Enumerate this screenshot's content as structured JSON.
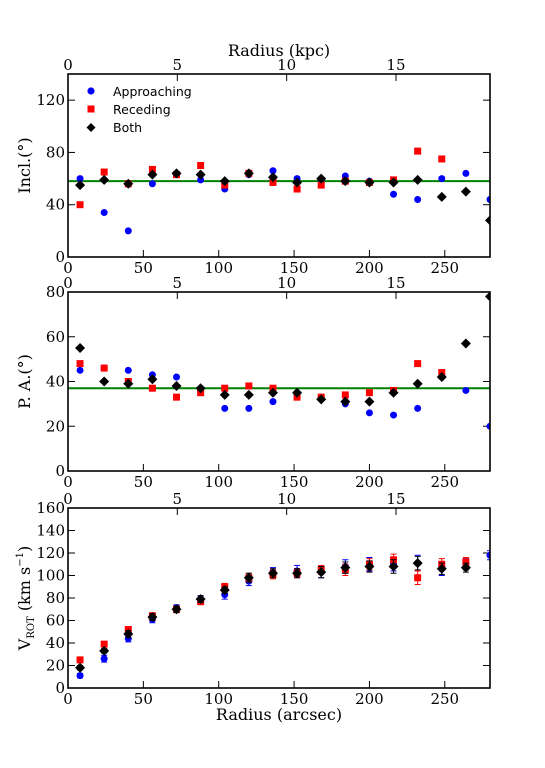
{
  "figure": {
    "top_axis_label": "Radius (kpc)",
    "bottom_axis_label": "Radius (arcsec)"
  },
  "legend": {
    "entries": [
      {
        "label": "Approaching",
        "marker": "circle",
        "color": "#0000ff"
      },
      {
        "label": "Receding",
        "marker": "square",
        "color": "#ff0000"
      },
      {
        "label": "Both",
        "marker": "diamond",
        "color": "#000000"
      }
    ]
  },
  "colors": {
    "approaching": "#0000ff",
    "receding": "#ff0000",
    "both": "#000000",
    "model_line": "#008000"
  },
  "chart_data": [
    {
      "type": "scatter",
      "panel": "inclination",
      "ylabel": "Incl.(°)",
      "xlim": [
        0,
        280
      ],
      "ylim": [
        0,
        140
      ],
      "xticks": [
        0,
        50,
        100,
        150,
        200,
        250
      ],
      "yticks": [
        0,
        40,
        80,
        120
      ],
      "top_xlim_kpc": [
        0,
        19.3
      ],
      "top_xticks_kpc": [
        0,
        5,
        10,
        15
      ],
      "hline": 58,
      "legend_position": "upper-left",
      "series": [
        {
          "name": "Approaching",
          "marker": "circle",
          "x": [
            8,
            24,
            40,
            56,
            72,
            88,
            104,
            120,
            136,
            152,
            168,
            184,
            200,
            216,
            232,
            248,
            264,
            280
          ],
          "y": [
            60,
            34,
            20,
            56,
            63,
            59,
            52,
            63,
            66,
            60,
            59,
            62,
            58,
            48,
            44,
            60,
            64,
            44
          ]
        },
        {
          "name": "Receding",
          "marker": "square",
          "x": [
            8,
            24,
            40,
            56,
            72,
            88,
            104,
            120,
            136,
            152,
            168,
            184,
            200,
            216,
            232,
            248
          ],
          "y": [
            40,
            65,
            56,
            67,
            63,
            70,
            55,
            64,
            57,
            52,
            55,
            58,
            57,
            59,
            81,
            75
          ]
        },
        {
          "name": "Both",
          "marker": "diamond",
          "x": [
            8,
            24,
            40,
            56,
            72,
            88,
            104,
            120,
            136,
            152,
            168,
            184,
            200,
            216,
            232,
            248,
            264,
            280
          ],
          "y": [
            55,
            59,
            56,
            63,
            64,
            63,
            58,
            64,
            61,
            57,
            60,
            58,
            57,
            57,
            59,
            46,
            50,
            28
          ]
        }
      ]
    },
    {
      "type": "scatter",
      "panel": "position_angle",
      "ylabel": "P. A.(°)",
      "xlim": [
        0,
        280
      ],
      "ylim": [
        0,
        80
      ],
      "xticks": [
        0,
        50,
        100,
        150,
        200,
        250
      ],
      "yticks": [
        0,
        20,
        40,
        60,
        80
      ],
      "top_xlim_kpc": [
        0,
        19.3
      ],
      "top_xticks_kpc": [
        0,
        5,
        10,
        15
      ],
      "hline": 37,
      "series": [
        {
          "name": "Approaching",
          "marker": "circle",
          "x": [
            8,
            24,
            40,
            56,
            72,
            88,
            104,
            120,
            136,
            152,
            168,
            184,
            200,
            216,
            232,
            248,
            264,
            280
          ],
          "y": [
            45,
            46,
            45,
            43,
            42,
            36,
            28,
            28,
            31,
            34,
            33,
            30,
            26,
            25,
            28,
            42,
            36,
            20
          ]
        },
        {
          "name": "Receding",
          "marker": "square",
          "x": [
            8,
            24,
            40,
            56,
            72,
            88,
            104,
            120,
            136,
            152,
            168,
            184,
            200,
            216,
            232,
            248
          ],
          "y": [
            48,
            46,
            40,
            37,
            33,
            35,
            37,
            38,
            37,
            33,
            33,
            34,
            35,
            36,
            48,
            44
          ]
        },
        {
          "name": "Both",
          "marker": "diamond",
          "x": [
            8,
            24,
            40,
            56,
            72,
            88,
            104,
            120,
            136,
            152,
            168,
            184,
            200,
            216,
            232,
            248,
            264,
            280
          ],
          "y": [
            55,
            40,
            39,
            41,
            38,
            37,
            34,
            34,
            35,
            35,
            32,
            31,
            31,
            35,
            39,
            42,
            57,
            78
          ]
        }
      ]
    },
    {
      "type": "scatter",
      "panel": "rotation_velocity",
      "ylabel_main": "V",
      "ylabel_sub": "ROT",
      "ylabel_units": " (km s",
      "ylabel_sup": "−1",
      "ylabel_close": ")",
      "xlim": [
        0,
        280
      ],
      "ylim": [
        0,
        160
      ],
      "xticks": [
        0,
        50,
        100,
        150,
        200,
        250
      ],
      "yticks": [
        0,
        20,
        40,
        60,
        80,
        100,
        120,
        140,
        160
      ],
      "top_xlim_kpc": [
        0,
        19.3
      ],
      "top_xticks_kpc": [
        0,
        5,
        10,
        15
      ],
      "series": [
        {
          "name": "Approaching",
          "marker": "circle",
          "x": [
            8,
            24,
            40,
            56,
            72,
            88,
            104,
            120,
            136,
            152,
            168,
            184,
            200,
            216,
            232,
            248,
            264,
            280
          ],
          "y": [
            11,
            26,
            44,
            61,
            71,
            79,
            83,
            95,
            103,
            104,
            103,
            108,
            110,
            110,
            111,
            106,
            110,
            118
          ],
          "yerr": [
            2,
            3,
            3,
            3,
            3,
            3,
            4,
            4,
            4,
            5,
            5,
            6,
            6,
            6,
            7,
            6,
            5,
            4
          ]
        },
        {
          "name": "Receding",
          "marker": "square",
          "x": [
            8,
            24,
            40,
            56,
            72,
            88,
            104,
            120,
            136,
            152,
            168,
            184,
            200,
            216,
            232,
            248,
            264
          ],
          "y": [
            25,
            39,
            52,
            64,
            70,
            77,
            90,
            98,
            101,
            102,
            105,
            105,
            110,
            114,
            98,
            110,
            112
          ],
          "yerr": [
            2,
            2,
            2,
            3,
            3,
            3,
            3,
            4,
            4,
            4,
            4,
            5,
            5,
            5,
            6,
            5,
            4
          ]
        },
        {
          "name": "Both",
          "marker": "diamond",
          "x": [
            8,
            24,
            40,
            56,
            72,
            88,
            104,
            120,
            136,
            152,
            168,
            184,
            200,
            216,
            232,
            248,
            264
          ],
          "y": [
            18,
            33,
            48,
            63,
            70,
            79,
            87,
            98,
            102,
            102,
            103,
            107,
            108,
            108,
            111,
            106,
            107
          ],
          "yerr": [
            2,
            2,
            3,
            3,
            3,
            3,
            3,
            4,
            4,
            4,
            5,
            5,
            5,
            6,
            6,
            5,
            4
          ]
        }
      ]
    }
  ]
}
